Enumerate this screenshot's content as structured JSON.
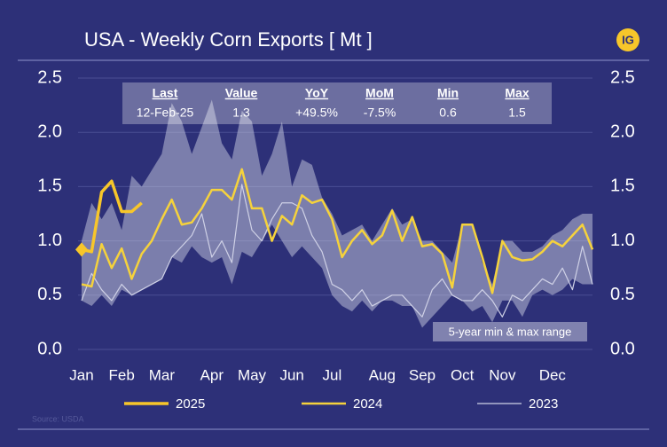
{
  "chart_data": {
    "type": "line",
    "title": "USA - Weekly Corn Exports [ Mt ]",
    "logo": "IG",
    "source": "Source: USDA",
    "categories": [
      "Jan",
      null,
      null,
      null,
      "Feb",
      null,
      null,
      null,
      "Mar",
      null,
      null,
      null,
      null,
      "Apr",
      null,
      null,
      null,
      "May",
      null,
      null,
      null,
      "Jun",
      null,
      null,
      null,
      "Jul",
      null,
      null,
      null,
      null,
      "Aug",
      null,
      null,
      null,
      "Sep",
      null,
      null,
      null,
      "Oct",
      null,
      null,
      null,
      "Nov",
      null,
      null,
      null,
      null,
      "Dec",
      null,
      null,
      null,
      null
    ],
    "ylim": [
      0,
      2.5
    ],
    "yticks": [
      {
        "value": 0,
        "label": "0.0"
      },
      0.5,
      {
        "value": 1,
        "label": "1.0"
      },
      1.5,
      {
        "value": 2,
        "label": "2.0"
      },
      2.5
    ],
    "grid": true,
    "range": {
      "name": "5-year min & max range",
      "color": "#c9cbe0",
      "high": [
        1.0,
        1.35,
        1.2,
        1.35,
        1.1,
        1.6,
        1.5,
        1.65,
        1.8,
        2.27,
        2.1,
        1.8,
        2.05,
        2.3,
        1.9,
        1.75,
        2.2,
        2.1,
        1.6,
        1.8,
        2.1,
        1.5,
        1.75,
        1.7,
        1.4,
        1.25,
        1.05,
        1.1,
        1.15,
        1.0,
        1.15,
        1.3,
        1.15,
        1.2,
        1.0,
        1.0,
        0.9,
        0.8,
        1.15,
        1.15,
        0.8,
        0.6,
        1.0,
        1.0,
        0.9,
        0.9,
        0.95,
        1.05,
        1.1,
        1.2,
        1.25,
        1.25
      ],
      "low": [
        0.45,
        0.4,
        0.5,
        0.4,
        0.55,
        0.5,
        0.55,
        0.6,
        0.65,
        0.85,
        0.8,
        0.95,
        0.85,
        0.8,
        0.85,
        0.6,
        0.9,
        0.85,
        1.0,
        1.15,
        1.0,
        0.85,
        0.95,
        0.85,
        0.75,
        0.5,
        0.4,
        0.35,
        0.45,
        0.35,
        0.45,
        0.45,
        0.4,
        0.4,
        0.2,
        0.3,
        0.4,
        0.5,
        0.45,
        0.35,
        0.4,
        0.25,
        0.45,
        0.45,
        0.3,
        0.5,
        0.55,
        0.5,
        0.55,
        0.65,
        0.6,
        0.6
      ]
    },
    "series": [
      {
        "name": "2025",
        "color": "#f7c62a",
        "values": [
          0.92,
          0.9,
          1.45,
          1.55,
          1.27,
          1.27,
          1.35,
          null,
          null,
          null,
          null,
          null,
          null,
          null,
          null,
          null,
          null,
          null,
          null,
          null,
          null,
          null,
          null,
          null,
          null,
          null,
          null,
          null,
          null,
          null,
          null,
          null,
          null,
          null,
          null,
          null,
          null,
          null,
          null,
          null,
          null,
          null,
          null,
          null,
          null,
          null,
          null,
          null,
          null,
          null,
          null,
          null
        ]
      },
      {
        "name": "2024",
        "color": "#f5d23c",
        "values": [
          0.6,
          0.58,
          0.97,
          0.75,
          0.93,
          0.65,
          0.88,
          1.0,
          1.2,
          1.38,
          1.15,
          1.17,
          1.3,
          1.47,
          1.47,
          1.38,
          1.66,
          1.3,
          1.3,
          1.0,
          1.23,
          1.15,
          1.42,
          1.35,
          1.38,
          1.2,
          0.85,
          1.0,
          1.1,
          0.97,
          1.05,
          1.28,
          1.0,
          1.22,
          0.95,
          0.97,
          0.88,
          0.57,
          1.15,
          1.15,
          0.85,
          0.52,
          1.0,
          0.85,
          0.82,
          0.83,
          0.9,
          1.0,
          0.95,
          1.05,
          1.15,
          0.92
        ]
      },
      {
        "name": "2023",
        "color": "#cfd1e6",
        "values": [
          0.45,
          0.7,
          0.55,
          0.45,
          0.6,
          0.5,
          0.55,
          0.6,
          0.65,
          0.85,
          0.95,
          1.05,
          1.25,
          0.85,
          1.0,
          0.8,
          1.52,
          1.1,
          1.0,
          1.2,
          1.35,
          1.35,
          1.3,
          1.05,
          0.9,
          0.6,
          0.55,
          0.45,
          0.55,
          0.4,
          0.45,
          0.5,
          0.5,
          0.4,
          0.3,
          0.55,
          0.65,
          0.5,
          0.45,
          0.45,
          0.55,
          0.45,
          0.3,
          0.5,
          0.45,
          0.55,
          0.65,
          0.6,
          0.75,
          0.55,
          0.95,
          0.6
        ]
      }
    ],
    "stats": {
      "headers": [
        "Last",
        "Value",
        "YoY",
        "MoM",
        "Min",
        "Max"
      ],
      "values": [
        "12-Feb-25",
        "1.3",
        "+49.5%",
        "-7.5%",
        "0.6",
        "1.5"
      ]
    }
  }
}
